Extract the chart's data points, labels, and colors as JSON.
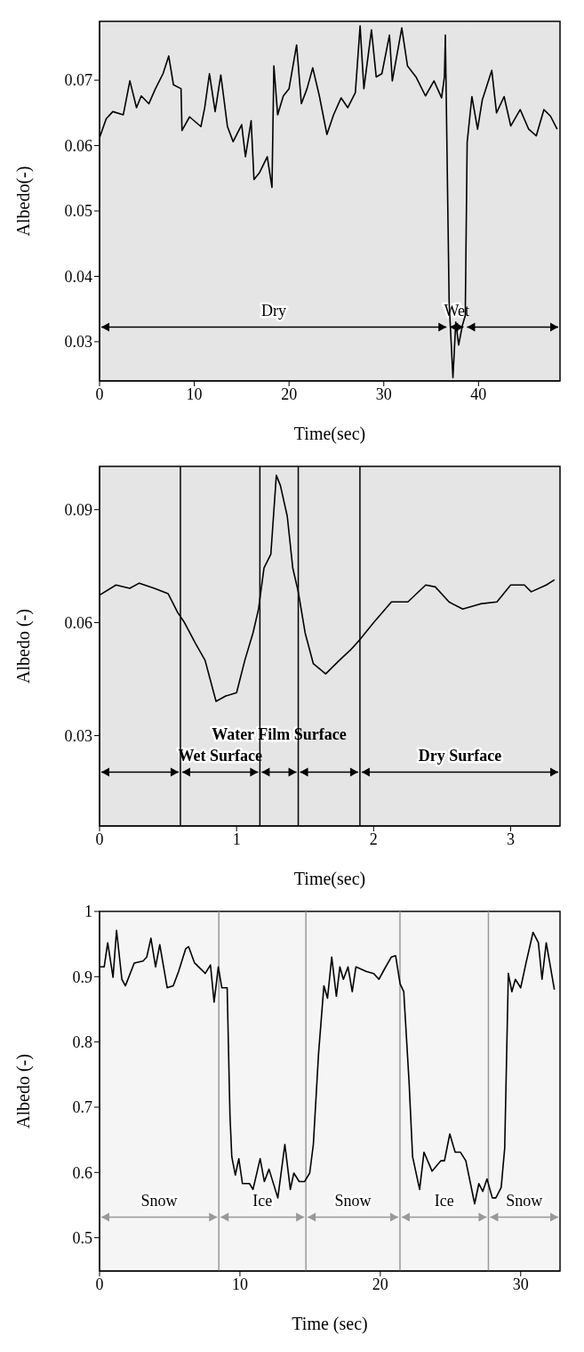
{
  "chart_data": [
    {
      "type": "line",
      "xlabel": "Time(sec)",
      "ylabel": "Albedo(-)",
      "color": "#000000",
      "xlim": [
        0,
        48.6
      ],
      "ylim": [
        0.024,
        0.079
      ],
      "xticks": [
        0,
        10,
        20,
        30,
        40
      ],
      "yticks": [
        0.03,
        0.04,
        0.05,
        0.06,
        0.07
      ],
      "x": [
        0,
        0.7,
        1.4,
        2.5,
        3.2,
        3.9,
        4.4,
        5.2,
        5.9,
        6.7,
        7.3,
        7.8,
        8.6,
        8.7,
        9.5,
        10.7,
        11.1,
        11.6,
        12.2,
        12.8,
        13.5,
        14.1,
        15.0,
        15.4,
        16.0,
        16.3,
        16.9,
        17.7,
        18.2,
        18.4,
        18.8,
        19.4,
        20.0,
        20.8,
        21.3,
        21.9,
        22.5,
        23.2,
        24.0,
        24.7,
        25.5,
        26.2,
        27.0,
        27.5,
        27.9,
        28.7,
        29.2,
        29.8,
        30.6,
        30.9,
        31.9,
        32.5,
        33.4,
        34.4,
        35.3,
        36.1,
        36.4,
        36.5,
        36.9,
        37.3,
        37.6,
        37.9,
        38.3,
        38.6,
        38.8,
        39.3,
        39.9,
        40.4,
        41.4,
        41.9,
        42.7,
        43.4,
        44.4,
        45.3,
        46.1,
        46.9,
        47.6,
        48.3
      ],
      "values": [
        0.0612,
        0.0641,
        0.0652,
        0.0647,
        0.0699,
        0.0658,
        0.0676,
        0.0664,
        0.0687,
        0.071,
        0.0737,
        0.0693,
        0.0687,
        0.0623,
        0.0644,
        0.0629,
        0.0658,
        0.071,
        0.0652,
        0.0708,
        0.0629,
        0.0606,
        0.0632,
        0.0583,
        0.0638,
        0.0548,
        0.0559,
        0.0583,
        0.0536,
        0.0722,
        0.0647,
        0.0676,
        0.0687,
        0.0754,
        0.0664,
        0.0687,
        0.0719,
        0.0676,
        0.0617,
        0.0647,
        0.0673,
        0.0658,
        0.0681,
        0.0783,
        0.0687,
        0.0777,
        0.0705,
        0.071,
        0.0769,
        0.0699,
        0.078,
        0.0722,
        0.0705,
        0.0676,
        0.0699,
        0.0673,
        0.0705,
        0.0769,
        0.036,
        0.0245,
        0.033,
        0.0295,
        0.0325,
        0.034,
        0.0605,
        0.0675,
        0.0625,
        0.067,
        0.0715,
        0.065,
        0.0675,
        0.063,
        0.0655,
        0.0625,
        0.0615,
        0.0655,
        0.0645,
        0.0625
      ],
      "bands": [
        {
          "axis": "x",
          "from": 0,
          "to": 36.8,
          "label": "Dry",
          "color": "#000000"
        },
        {
          "axis": "x",
          "from": 36.8,
          "to": 38.6,
          "label": "Wet",
          "color": "#000000"
        },
        {
          "axis": "x",
          "from": 38.6,
          "to": 48.6,
          "color": "#000000"
        }
      ]
    },
    {
      "type": "line",
      "xlabel": "Time(sec)",
      "ylabel": "Albedo (-)",
      "color": "#000000",
      "xlim": [
        0,
        3.36
      ],
      "ylim": [
        0.006,
        0.1015
      ],
      "xticks": [
        0,
        1,
        2,
        3
      ],
      "yticks": [
        0.03,
        0.06,
        0.09
      ],
      "x": [
        0,
        0.12,
        0.22,
        0.29,
        0.4,
        0.5,
        0.57,
        0.62,
        0.7,
        0.77,
        0.85,
        0.92,
        1.0,
        1.06,
        1.12,
        1.16,
        1.2,
        1.25,
        1.29,
        1.32,
        1.37,
        1.41,
        1.45,
        1.5,
        1.56,
        1.65,
        1.75,
        1.83,
        1.9,
        2.0,
        2.13,
        2.25,
        2.38,
        2.45,
        2.55,
        2.65,
        2.78,
        2.9,
        3.0,
        3.1,
        3.15,
        3.26,
        3.32
      ],
      "values": [
        0.0673,
        0.07,
        0.0691,
        0.0705,
        0.0691,
        0.0677,
        0.0627,
        0.06,
        0.0545,
        0.05,
        0.0391,
        0.0405,
        0.0414,
        0.05,
        0.0573,
        0.0636,
        0.0745,
        0.0782,
        0.0991,
        0.0964,
        0.0882,
        0.0745,
        0.0682,
        0.0573,
        0.0491,
        0.0464,
        0.05,
        0.0527,
        0.0555,
        0.06,
        0.0655,
        0.0655,
        0.07,
        0.0695,
        0.0655,
        0.0636,
        0.065,
        0.0655,
        0.07,
        0.07,
        0.0682,
        0.07,
        0.0714
      ],
      "ref_lines": [
        {
          "axis": "x",
          "value": 0.59,
          "color": "#000000"
        },
        {
          "axis": "x",
          "value": 1.17,
          "color": "#000000"
        },
        {
          "axis": "x",
          "value": 1.45,
          "color": "#000000"
        },
        {
          "axis": "x",
          "value": 1.9,
          "color": "#000000"
        }
      ],
      "bands": [
        {
          "axis": "x",
          "from": 0,
          "to": 0.59,
          "color": "#000000"
        },
        {
          "axis": "x",
          "from": 0.59,
          "to": 1.17,
          "label": "Wet Surface",
          "color": "#000000"
        },
        {
          "axis": "x",
          "from": 1.17,
          "to": 1.45,
          "label": "Water Film Surface",
          "color": "#000000"
        },
        {
          "axis": "x",
          "from": 1.45,
          "to": 1.9,
          "color": "#000000"
        },
        {
          "axis": "x",
          "from": 1.9,
          "to": 3.36,
          "label": "Dry Surface",
          "color": "#000000"
        }
      ]
    },
    {
      "type": "line",
      "xlabel": "Time (sec)",
      "ylabel": "Albedo (-)",
      "color": "#000000",
      "xlim": [
        0,
        32.8
      ],
      "ylim": [
        0.449,
        1
      ],
      "xticks": [
        0,
        10,
        20,
        30
      ],
      "yticks": [
        0.5,
        0.6,
        0.7,
        0.8,
        0.9,
        1
      ],
      "x": [
        0,
        0.33,
        0.58,
        0.96,
        1.21,
        1.59,
        1.84,
        2.47,
        3.1,
        3.36,
        3.66,
        3.99,
        4.29,
        4.82,
        5.25,
        5.63,
        6.14,
        6.34,
        6.77,
        7.53,
        7.9,
        8.16,
        8.46,
        8.71,
        9.09,
        9.29,
        9.42,
        9.67,
        9.92,
        10.18,
        10.68,
        10.93,
        11.44,
        11.74,
        12.07,
        12.7,
        13.2,
        13.59,
        13.84,
        14.22,
        14.6,
        14.97,
        15.23,
        15.6,
        15.98,
        16.24,
        16.54,
        16.87,
        17.12,
        17.37,
        17.7,
        18.0,
        18.26,
        19.01,
        19.52,
        19.9,
        20.28,
        20.78,
        21.09,
        21.41,
        21.67,
        22.05,
        22.3,
        22.8,
        23.11,
        23.69,
        24.32,
        24.57,
        24.95,
        25.33,
        25.71,
        26.09,
        26.72,
        27.02,
        27.3,
        27.6,
        27.98,
        28.23,
        28.61,
        28.86,
        29.12,
        29.37,
        29.62,
        30.0,
        30.38,
        30.88,
        31.26,
        31.52,
        31.82,
        32.4
      ],
      "values": [
        0.915,
        0.915,
        0.952,
        0.899,
        0.971,
        0.896,
        0.886,
        0.921,
        0.924,
        0.93,
        0.959,
        0.915,
        0.949,
        0.883,
        0.886,
        0.908,
        0.943,
        0.946,
        0.921,
        0.905,
        0.918,
        0.861,
        0.915,
        0.883,
        0.883,
        0.687,
        0.624,
        0.596,
        0.621,
        0.583,
        0.583,
        0.574,
        0.621,
        0.586,
        0.605,
        0.561,
        0.643,
        0.574,
        0.599,
        0.586,
        0.586,
        0.599,
        0.643,
        0.782,
        0.886,
        0.867,
        0.93,
        0.87,
        0.915,
        0.896,
        0.915,
        0.877,
        0.915,
        0.908,
        0.905,
        0.896,
        0.911,
        0.93,
        0.932,
        0.889,
        0.877,
        0.738,
        0.624,
        0.574,
        0.631,
        0.602,
        0.618,
        0.618,
        0.659,
        0.631,
        0.631,
        0.618,
        0.552,
        0.583,
        0.571,
        0.59,
        0.561,
        0.561,
        0.577,
        0.637,
        0.905,
        0.877,
        0.896,
        0.883,
        0.921,
        0.968,
        0.952,
        0.896,
        0.952,
        0.88
      ],
      "ref_lines": [
        {
          "axis": "x",
          "value": 8.5,
          "color": "#999999"
        },
        {
          "axis": "x",
          "value": 14.7,
          "color": "#999999"
        },
        {
          "axis": "x",
          "value": 21.4,
          "color": "#999999"
        },
        {
          "axis": "x",
          "value": 27.7,
          "color": "#999999"
        }
      ],
      "bands": [
        {
          "axis": "x",
          "from": 0,
          "to": 8.5,
          "label": "Snow",
          "color": "#999999"
        },
        {
          "axis": "x",
          "from": 8.5,
          "to": 14.7,
          "label": "Ice",
          "color": "#999999"
        },
        {
          "axis": "x",
          "from": 14.7,
          "to": 21.4,
          "label": "Snow",
          "color": "#999999"
        },
        {
          "axis": "x",
          "from": 21.4,
          "to": 27.7,
          "label": "Ice",
          "color": "#999999"
        },
        {
          "axis": "x",
          "from": 27.7,
          "to": 32.8,
          "label": "Snow",
          "color": "#999999"
        }
      ]
    }
  ]
}
